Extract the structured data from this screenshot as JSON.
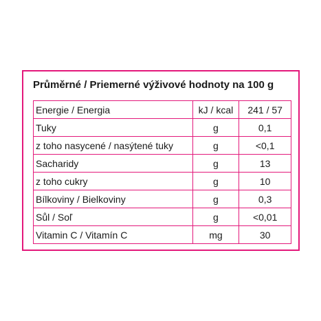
{
  "title": "Průměrné / Priemerné výživové hodnoty na 100 g",
  "rows": [
    {
      "name": "Energie / Energia",
      "unit": "kJ / kcal",
      "value": "241 / 57"
    },
    {
      "name": "Tuky",
      "unit": "g",
      "value": "0,1"
    },
    {
      "name": "z toho nasycené / nasýtené tuky",
      "unit": "g",
      "value": "<0,1"
    },
    {
      "name": "Sacharidy",
      "unit": "g",
      "value": "13"
    },
    {
      "name": "z toho cukry",
      "unit": "g",
      "value": "10"
    },
    {
      "name": "Bílkoviny / Bielkoviny",
      "unit": "g",
      "value": "0,3"
    },
    {
      "name": "Sůl / Soľ",
      "unit": "g",
      "value": "<0,01"
    },
    {
      "name": "Vitamin C / Vitamín C",
      "unit": "mg",
      "value": "30"
    }
  ],
  "colors": {
    "border": "#e3177a",
    "text": "#1a1a1a",
    "background": "#ffffff"
  }
}
